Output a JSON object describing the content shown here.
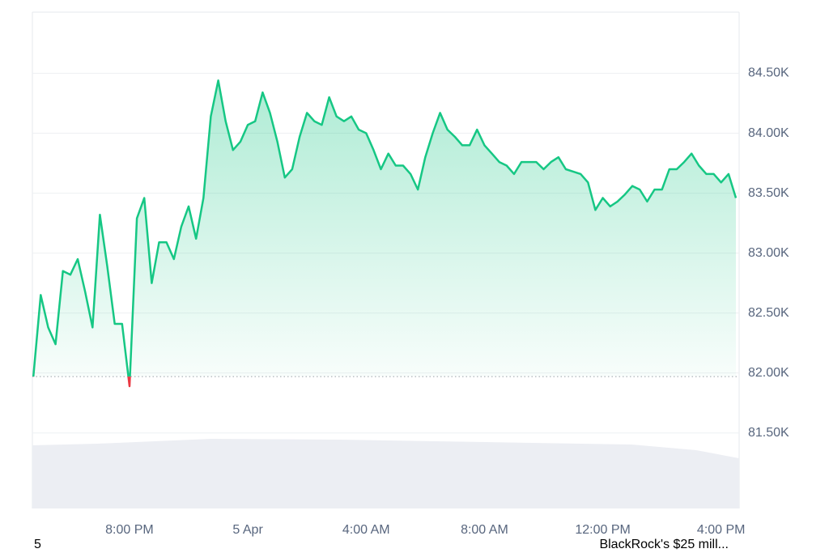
{
  "chart_data": {
    "type": "line",
    "series": [
      {
        "color": "#16c784",
        "below_color": "#ea3943",
        "values": [
          81.97,
          82.65,
          82.38,
          82.24,
          82.85,
          82.82,
          82.95,
          82.68,
          82.38,
          83.32,
          82.89,
          82.41,
          82.41,
          81.89,
          83.29,
          83.46,
          82.75,
          83.09,
          83.09,
          82.95,
          83.22,
          83.39,
          83.12,
          83.46,
          84.14,
          84.44,
          84.1,
          83.86,
          83.93,
          84.07,
          84.1,
          84.34,
          84.17,
          83.93,
          83.63,
          83.7,
          83.97,
          84.17,
          84.1,
          84.07,
          84.3,
          84.14,
          84.1,
          84.14,
          84.03,
          84.0,
          83.86,
          83.7,
          83.83,
          83.73,
          83.73,
          83.66,
          83.53,
          83.8,
          84.0,
          84.17,
          84.03,
          83.97,
          83.9,
          83.9,
          84.03,
          83.9,
          83.83,
          83.76,
          83.73,
          83.66,
          83.76,
          83.76,
          83.76,
          83.7,
          83.76,
          83.8,
          83.7,
          83.68,
          83.66,
          83.59,
          83.36,
          83.46,
          83.39,
          83.43,
          83.49,
          83.56,
          83.53,
          83.43,
          83.53,
          83.53,
          83.7,
          83.7,
          83.76,
          83.83,
          83.73,
          83.66,
          83.66,
          83.59,
          83.66,
          83.46
        ]
      }
    ],
    "xlim": [
      0,
      95
    ],
    "xticks": [
      {
        "value": 13,
        "label": "8:00 PM"
      },
      {
        "value": 29,
        "label": "5 Apr"
      },
      {
        "value": 45,
        "label": "4:00 AM"
      },
      {
        "value": 61,
        "label": "8:00 AM"
      },
      {
        "value": 77,
        "label": "12:00 PM"
      },
      {
        "value": 93,
        "label": "4:00 PM"
      }
    ],
    "ylim": [
      80.87,
      85.01
    ],
    "yticks": [
      {
        "value": 81.5,
        "label": "81.50K"
      },
      {
        "value": 82,
        "label": "82.00K"
      },
      {
        "value": 82.5,
        "label": "82.50K"
      },
      {
        "value": 83,
        "label": "83.00K"
      },
      {
        "value": 83.5,
        "label": "83.50K"
      },
      {
        "value": 84,
        "label": "84.00K"
      },
      {
        "value": 84.5,
        "label": "84.50K"
      }
    ],
    "grid": true
  },
  "footer": {
    "left": "5",
    "right": "BlackRock's $25 mill..."
  }
}
